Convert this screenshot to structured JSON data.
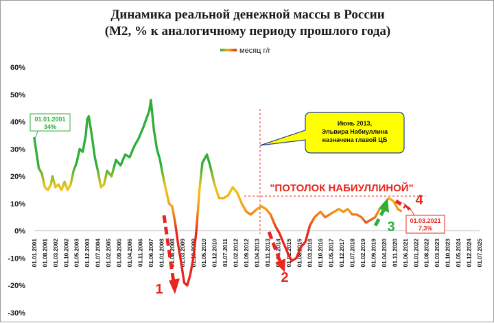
{
  "chart_data": {
    "type": "line",
    "title": "Динамика реальной денежной массы в России",
    "subtitle": "(М2, % к аналогичному периоду прошлого года)",
    "legend": [
      {
        "label": "месяц г/г"
      }
    ],
    "legend_position": "top-right",
    "ylabel": "",
    "xlabel": "",
    "ylim": [
      -30,
      60
    ],
    "yticks": [
      "60%",
      "50%",
      "40%",
      "30%",
      "20%",
      "10%",
      "0%",
      "-10%",
      "-20%",
      "-30%"
    ],
    "grid": false,
    "xlim": [
      "2001-01-01",
      "2025-07-01"
    ],
    "xtick_labels": [
      "01.01.2001",
      "01.08.2001",
      "01.03.2002",
      "01.10.2002",
      "01.05.2003",
      "01.12.2003",
      "01.07.2004",
      "01.02.2005",
      "01.09.2005",
      "01.04.2006",
      "01.11.2006",
      "01.06.2007",
      "01.01.2008",
      "01.08.2008",
      "01.03.2009",
      "01.10.2009",
      "01.05.2010",
      "01.12.2010",
      "01.07.2011",
      "01.02.2012",
      "01.09.2012",
      "01.04.2013",
      "01.11.2013",
      "01.06.2014",
      "01.01.2015",
      "01.08.2015",
      "01.03.2016",
      "01.10.2016",
      "01.05.2017",
      "01.12.2017",
      "01.07.2018",
      "01.02.2019",
      "01.09.2019",
      "01.04.2020",
      "01.11.2020",
      "01.06.2021",
      "01.01.2022",
      "01.08.2022",
      "01.03.2023",
      "01.10.2023",
      "01.05.2024",
      "01.12.2024",
      "01.07.2025"
    ],
    "series": [
      {
        "name": "месяц г/г",
        "points": [
          [
            "2001-01-01",
            34
          ],
          [
            "2001-04-01",
            23
          ],
          [
            "2001-06-01",
            21
          ],
          [
            "2001-08-01",
            16
          ],
          [
            "2001-10-01",
            15
          ],
          [
            "2001-12-01",
            17
          ],
          [
            "2002-01-01",
            20
          ],
          [
            "2002-03-01",
            16
          ],
          [
            "2002-05-01",
            17
          ],
          [
            "2002-07-01",
            15
          ],
          [
            "2002-09-01",
            18
          ],
          [
            "2002-11-01",
            15
          ],
          [
            "2003-01-01",
            17
          ],
          [
            "2003-03-01",
            22
          ],
          [
            "2003-05-01",
            25
          ],
          [
            "2003-07-01",
            30
          ],
          [
            "2003-09-01",
            29
          ],
          [
            "2003-11-01",
            35
          ],
          [
            "2003-12-01",
            41
          ],
          [
            "2004-01-01",
            42
          ],
          [
            "2004-03-01",
            35
          ],
          [
            "2004-05-01",
            27
          ],
          [
            "2004-07-01",
            22
          ],
          [
            "2004-09-01",
            16
          ],
          [
            "2004-11-01",
            17
          ],
          [
            "2005-01-01",
            22
          ],
          [
            "2005-04-01",
            20
          ],
          [
            "2005-07-01",
            26
          ],
          [
            "2005-10-01",
            24
          ],
          [
            "2006-01-01",
            28
          ],
          [
            "2006-04-01",
            27
          ],
          [
            "2006-07-01",
            31
          ],
          [
            "2006-10-01",
            34
          ],
          [
            "2007-01-01",
            38
          ],
          [
            "2007-03-01",
            41
          ],
          [
            "2007-05-01",
            44
          ],
          [
            "2007-06-01",
            48
          ],
          [
            "2007-08-01",
            37
          ],
          [
            "2007-10-01",
            30
          ],
          [
            "2007-12-01",
            26
          ],
          [
            "2008-02-01",
            20
          ],
          [
            "2008-04-01",
            15
          ],
          [
            "2008-06-01",
            10
          ],
          [
            "2008-08-01",
            9
          ],
          [
            "2008-10-01",
            3
          ],
          [
            "2008-12-01",
            -5
          ],
          [
            "2009-02-01",
            -12
          ],
          [
            "2009-04-01",
            -19
          ],
          [
            "2009-06-01",
            -20
          ],
          [
            "2009-08-01",
            -16
          ],
          [
            "2009-10-01",
            -10
          ],
          [
            "2009-12-01",
            0
          ],
          [
            "2010-02-01",
            15
          ],
          [
            "2010-04-01",
            25
          ],
          [
            "2010-07-01",
            28
          ],
          [
            "2010-09-01",
            24
          ],
          [
            "2010-12-01",
            17
          ],
          [
            "2011-03-01",
            12
          ],
          [
            "2011-06-01",
            12
          ],
          [
            "2011-09-01",
            13
          ],
          [
            "2011-12-01",
            16
          ],
          [
            "2012-03-01",
            14
          ],
          [
            "2012-06-01",
            10
          ],
          [
            "2012-09-01",
            7
          ],
          [
            "2012-12-01",
            6
          ],
          [
            "2013-04-01",
            8
          ],
          [
            "2013-07-01",
            9
          ],
          [
            "2013-10-01",
            8
          ],
          [
            "2014-01-01",
            6
          ],
          [
            "2014-04-01",
            2
          ],
          [
            "2014-07-01",
            -1
          ],
          [
            "2014-10-01",
            -5
          ],
          [
            "2015-01-01",
            -9
          ],
          [
            "2015-03-01",
            -11
          ],
          [
            "2015-06-01",
            -10
          ],
          [
            "2015-09-01",
            -6
          ],
          [
            "2015-12-01",
            -4
          ],
          [
            "2016-03-01",
            2
          ],
          [
            "2016-06-01",
            5
          ],
          [
            "2016-10-01",
            7
          ],
          [
            "2017-01-01",
            5
          ],
          [
            "2017-04-01",
            6
          ],
          [
            "2017-07-01",
            7
          ],
          [
            "2017-10-01",
            8
          ],
          [
            "2018-01-01",
            7
          ],
          [
            "2018-04-01",
            8
          ],
          [
            "2018-07-01",
            6
          ],
          [
            "2018-10-01",
            6
          ],
          [
            "2019-01-01",
            5
          ],
          [
            "2019-04-01",
            3
          ],
          [
            "2019-07-01",
            4
          ],
          [
            "2019-10-01",
            5
          ],
          [
            "2020-01-01",
            8
          ],
          [
            "2020-04-01",
            10
          ],
          [
            "2020-07-01",
            12
          ],
          [
            "2020-10-01",
            11
          ],
          [
            "2021-01-01",
            8
          ],
          [
            "2021-03-01",
            7.3
          ]
        ]
      }
    ],
    "annotations": [
      {
        "label": "01.01.2001",
        "value": "34%"
      },
      {
        "label": "Июнь 2013, Эльвира Набиуллина назначена главой ЦБ"
      },
      {
        "label": "\"ПОТОЛОК НАБИУЛЛИНОЙ\""
      },
      {
        "label": "01.03.2021",
        "value": "7,3%"
      },
      {
        "label": "1"
      },
      {
        "label": "2"
      },
      {
        "label": "3"
      },
      {
        "label": "4"
      }
    ],
    "colors": {
      "high": "#2fae3a",
      "mid": "#f2b10a",
      "low": "#e8261f",
      "annotation_box_yellow": "#ffff00"
    }
  }
}
